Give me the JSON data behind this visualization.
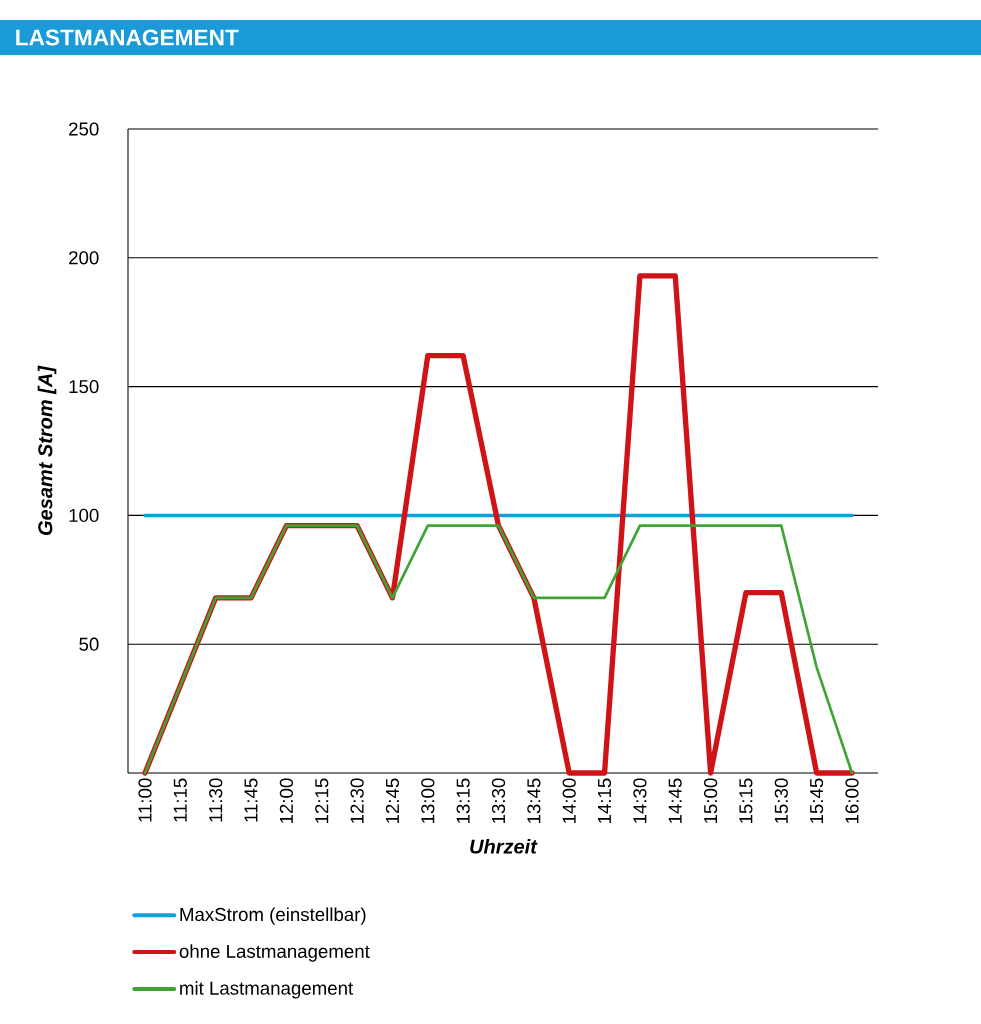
{
  "chart_data": {
    "type": "line",
    "title": "LASTMANAGEMENT",
    "xlabel": "Uhrzeit",
    "ylabel": "Gesamt Strom [A]",
    "categories": [
      "11:00",
      "11:15",
      "11:30",
      "11:45",
      "12:00",
      "12:15",
      "12:30",
      "12:45",
      "13:00",
      "13:15",
      "13:30",
      "13:45",
      "14:00",
      "14:15",
      "14:30",
      "14:45",
      "15:00",
      "15:15",
      "15:30",
      "15:45",
      "16:00"
    ],
    "series": [
      {
        "name": "MaxStrom (einstellbar)",
        "color": "#0fa0de",
        "values": [
          100,
          100,
          100,
          100,
          100,
          100,
          100,
          100,
          100,
          100,
          100,
          100,
          100,
          100,
          100,
          100,
          100,
          100,
          100,
          100,
          100
        ]
      },
      {
        "name": "ohne Lastmanagement",
        "color": "#d01317",
        "values": [
          0,
          34,
          68,
          68,
          96,
          96,
          96,
          68,
          162,
          162,
          96,
          68,
          0,
          0,
          193,
          193,
          0,
          70,
          70,
          0,
          0
        ]
      },
      {
        "name": "mit Lastmanagement",
        "color": "#3ea535",
        "values": [
          0,
          34,
          68,
          68,
          96,
          96,
          96,
          68,
          96,
          96,
          96,
          68,
          68,
          68,
          96,
          96,
          96,
          96,
          96,
          41,
          0
        ]
      }
    ],
    "ylim": [
      0,
      250
    ],
    "yticks": [
      50,
      100,
      150,
      200,
      250
    ],
    "grid": "y",
    "legend": "bottom",
    "marker": "none",
    "line_style": "solid"
  }
}
